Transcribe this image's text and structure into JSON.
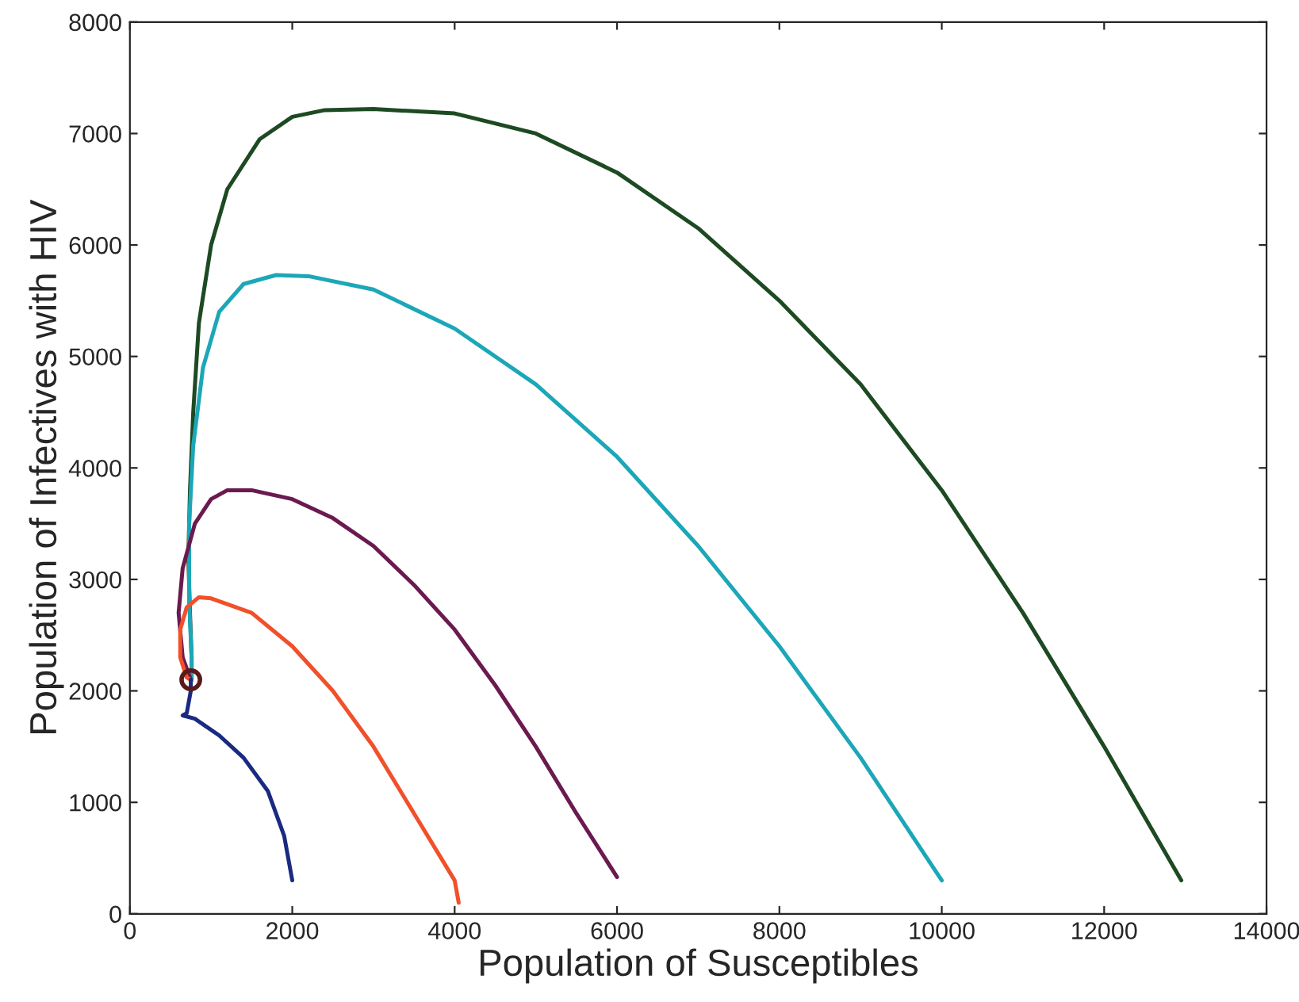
{
  "chart_data": {
    "type": "line",
    "xlabel": "Population of Susceptibles",
    "ylabel": "Population of Infectives with HIV",
    "xlim": [
      0,
      14000
    ],
    "ylim": [
      0,
      8000
    ],
    "xticks": [
      0,
      2000,
      4000,
      6000,
      8000,
      10000,
      12000,
      14000
    ],
    "yticks": [
      0,
      1000,
      2000,
      3000,
      4000,
      5000,
      6000,
      7000,
      8000
    ],
    "grid": false,
    "series": [
      {
        "color": "#1d4a22",
        "x": [
          12950,
          12000,
          11000,
          10000,
          9000,
          8000,
          7000,
          6000,
          5000,
          4000,
          3000,
          2400,
          2000,
          1600,
          1200,
          1000,
          850,
          780,
          740,
          720,
          740,
          760,
          760
        ],
        "values": [
          300,
          1500,
          2700,
          3800,
          4750,
          5500,
          6150,
          6650,
          7000,
          7180,
          7220,
          7210,
          7150,
          6950,
          6500,
          6000,
          5300,
          4500,
          3800,
          3200,
          2700,
          2300,
          2100
        ]
      },
      {
        "color": "#1ca7b8",
        "x": [
          10000,
          9000,
          8000,
          7000,
          6000,
          5000,
          4000,
          3000,
          2200,
          1800,
          1400,
          1100,
          900,
          780,
          730,
          730,
          760,
          760
        ],
        "values": [
          300,
          1400,
          2400,
          3300,
          4100,
          4750,
          5250,
          5600,
          5720,
          5730,
          5650,
          5400,
          4900,
          4200,
          3500,
          2800,
          2300,
          2100
        ]
      },
      {
        "color": "#6b1a4f",
        "x": [
          6000,
          5500,
          5000,
          4500,
          4000,
          3500,
          3000,
          2500,
          2000,
          1500,
          1200,
          1000,
          800,
          650,
          600,
          650,
          750
        ],
        "values": [
          330,
          900,
          1500,
          2050,
          2550,
          2950,
          3300,
          3550,
          3720,
          3800,
          3800,
          3720,
          3500,
          3100,
          2700,
          2300,
          2100
        ]
      },
      {
        "color": "#f0502a",
        "x": [
          4050,
          4000,
          3500,
          3000,
          2500,
          2000,
          1500,
          1000,
          850,
          700,
          620,
          620,
          700,
          750
        ],
        "values": [
          100,
          300,
          900,
          1500,
          2000,
          2400,
          2700,
          2830,
          2840,
          2750,
          2550,
          2300,
          2120,
          2100
        ]
      },
      {
        "color": "#1a2a80",
        "x": [
          2000,
          1900,
          1700,
          1400,
          1100,
          800,
          650,
          700,
          750,
          750
        ],
        "values": [
          300,
          700,
          1100,
          1400,
          1600,
          1750,
          1780,
          1800,
          2000,
          2100
        ]
      },
      {
        "type": "scatter",
        "marker": "circle",
        "color": "#5a1a1a",
        "x": [
          750
        ],
        "values": [
          2100
        ]
      }
    ]
  }
}
